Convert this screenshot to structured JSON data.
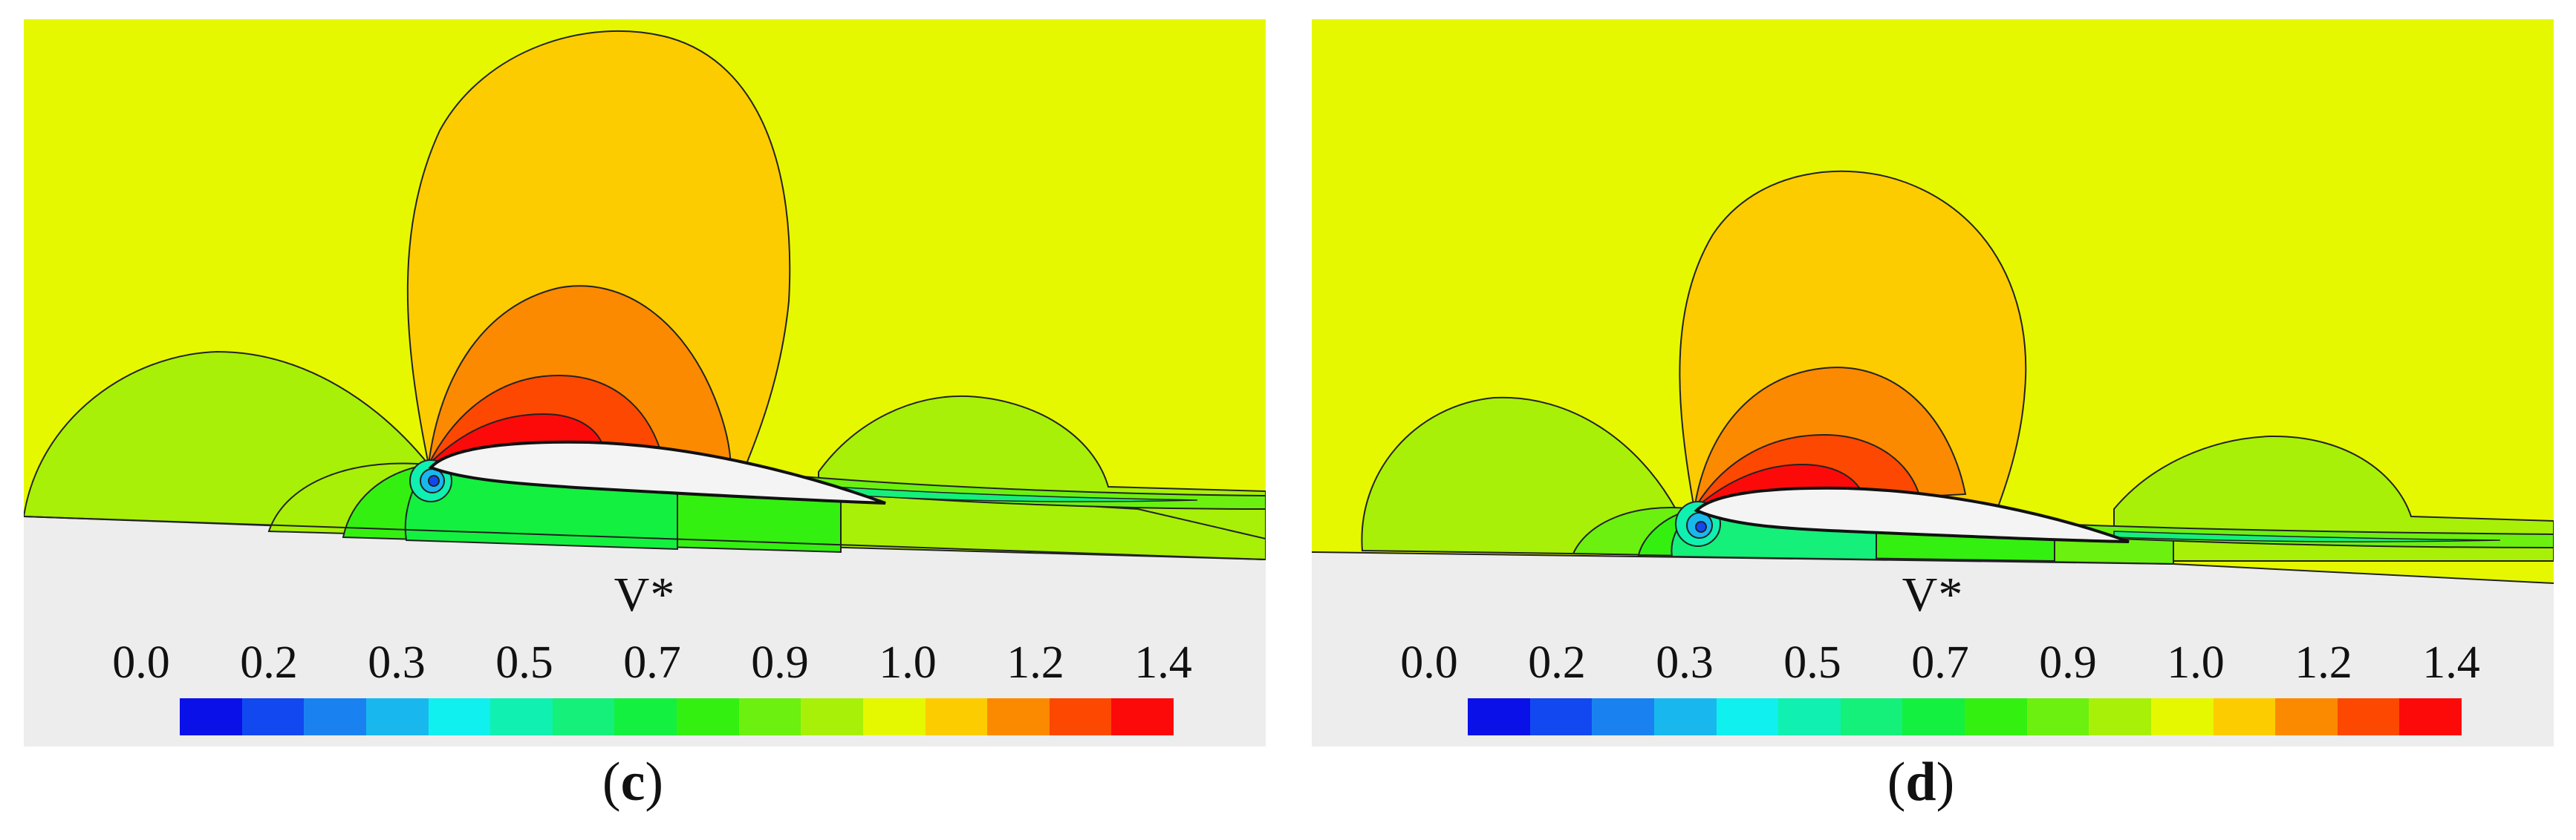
{
  "panels": [
    {
      "id": "c",
      "label_open": "(",
      "label_letter": "c",
      "label_close": ")",
      "legend": {
        "title": "V*",
        "ticks": [
          "0.0",
          "0.2",
          "0.3",
          "0.5",
          "0.7",
          "0.9",
          "1.0",
          "1.2",
          "1.4"
        ]
      }
    },
    {
      "id": "d",
      "label_open": "(",
      "label_letter": "d",
      "label_close": ")",
      "legend": {
        "title": "V*",
        "ticks": [
          "0.0",
          "0.2",
          "0.3",
          "0.5",
          "0.7",
          "0.9",
          "1.0",
          "1.2",
          "1.4"
        ]
      }
    }
  ],
  "colorbar_colors": [
    "#0a10e8",
    "#1248f0",
    "#1a82f0",
    "#18b8ef",
    "#10f0ee",
    "#10f0b0",
    "#14f07a",
    "#14f040",
    "#34f010",
    "#6cf010",
    "#a8f008",
    "#e6f800",
    "#fccc00",
    "#fc8a00",
    "#fc4800",
    "#fc0a0a"
  ],
  "field_colors": {
    "freestream": "#e6f800",
    "ground": "#ededed",
    "slow_outer": "#a8f008",
    "slow_mid": "#6cf010",
    "slow_inner": "#34f010",
    "slow_core": "#14f040",
    "fast_outer": "#fccc00",
    "fast_mid": "#fc8a00",
    "fast_inner": "#fc4800",
    "fast_core": "#fc0a0a",
    "airfoil": "#f4f4f4"
  }
}
